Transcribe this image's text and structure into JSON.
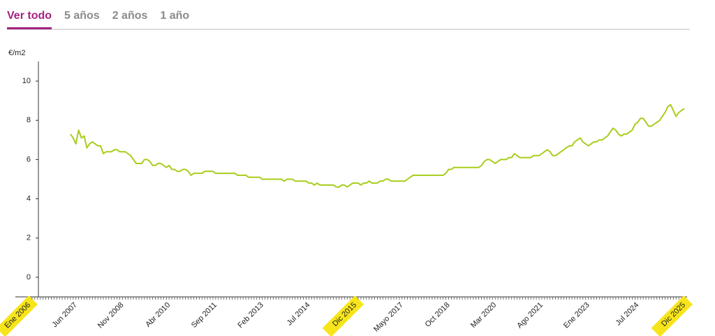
{
  "tabs": [
    "Ver todo",
    "5 años",
    "2 años",
    "1 año"
  ],
  "active_tab": 0,
  "chart_data": {
    "type": "line",
    "y_label": "€/m2",
    "color": "#a8cd1b",
    "ylim": [
      -1,
      11
    ],
    "yticks": [
      0,
      2,
      4,
      6,
      8,
      10
    ],
    "highlighted_categories": [
      0,
      119,
      239
    ],
    "categories": [
      "Ene 2006",
      null,
      null,
      null,
      null,
      null,
      null,
      null,
      null,
      null,
      null,
      null,
      null,
      null,
      null,
      null,
      null,
      "Jun 2007",
      null,
      null,
      null,
      null,
      null,
      null,
      null,
      null,
      null,
      null,
      null,
      null,
      null,
      null,
      null,
      null,
      "Nov 2008",
      null,
      null,
      null,
      null,
      null,
      null,
      null,
      null,
      null,
      null,
      null,
      null,
      null,
      null,
      null,
      null,
      "Abr 2010",
      null,
      null,
      null,
      null,
      null,
      null,
      null,
      null,
      null,
      null,
      null,
      null,
      null,
      null,
      null,
      null,
      "Sep 2011",
      null,
      null,
      null,
      null,
      null,
      null,
      null,
      null,
      null,
      null,
      null,
      null,
      null,
      null,
      null,
      null,
      "Feb 2013",
      null,
      null,
      null,
      null,
      null,
      null,
      null,
      null,
      null,
      null,
      null,
      null,
      null,
      null,
      null,
      null,
      "Jul 2014",
      null,
      null,
      null,
      null,
      null,
      null,
      null,
      null,
      null,
      null,
      null,
      null,
      null,
      null,
      null,
      null,
      "Dic 2015",
      null,
      null,
      null,
      null,
      null,
      null,
      null,
      null,
      null,
      null,
      null,
      null,
      null,
      null,
      null,
      null,
      "Mayo 2017",
      null,
      null,
      null,
      null,
      null,
      null,
      null,
      null,
      null,
      null,
      null,
      null,
      null,
      null,
      null,
      null,
      "Oct 2018",
      null,
      null,
      null,
      null,
      null,
      null,
      null,
      null,
      null,
      null,
      null,
      null,
      null,
      null,
      null,
      null,
      "Mar 2020",
      null,
      null,
      null,
      null,
      null,
      null,
      null,
      null,
      null,
      null,
      null,
      null,
      null,
      null,
      null,
      null,
      "Ago 2021",
      null,
      null,
      null,
      null,
      null,
      null,
      null,
      null,
      null,
      null,
      null,
      null,
      null,
      null,
      null,
      null,
      "Ene 2023",
      null,
      null,
      null,
      null,
      null,
      null,
      null,
      null,
      null,
      null,
      null,
      null,
      null,
      null,
      null,
      null,
      null,
      "Jul 2024",
      null,
      null,
      null,
      null,
      null,
      null,
      null,
      null,
      null,
      null,
      null,
      null,
      null,
      null,
      null,
      null,
      "Dic 2025"
    ],
    "values": [
      null,
      null,
      null,
      null,
      null,
      null,
      null,
      null,
      null,
      null,
      null,
      null,
      null,
      null,
      null,
      7.3,
      7.1,
      6.8,
      7.5,
      7.1,
      7.2,
      6.6,
      6.8,
      6.9,
      6.8,
      6.7,
      6.7,
      6.3,
      6.4,
      6.4,
      6.4,
      6.5,
      6.5,
      6.4,
      6.4,
      6.4,
      6.3,
      6.2,
      6.0,
      5.8,
      5.8,
      5.8,
      6.0,
      6.0,
      5.9,
      5.7,
      5.7,
      5.8,
      5.8,
      5.7,
      5.6,
      5.7,
      5.5,
      5.5,
      5.4,
      5.4,
      5.5,
      5.5,
      5.4,
      5.2,
      5.3,
      5.3,
      5.3,
      5.3,
      5.4,
      5.4,
      5.4,
      5.4,
      5.3,
      5.3,
      5.3,
      5.3,
      5.3,
      5.3,
      5.3,
      5.3,
      5.2,
      5.2,
      5.2,
      5.2,
      5.1,
      5.1,
      5.1,
      5.1,
      5.1,
      5.0,
      5.0,
      5.0,
      5.0,
      5.0,
      5.0,
      5.0,
      5.0,
      4.9,
      5.0,
      5.0,
      5.0,
      4.9,
      4.9,
      4.9,
      4.9,
      4.9,
      4.8,
      4.8,
      4.7,
      4.8,
      4.7,
      4.7,
      4.7,
      4.7,
      4.7,
      4.7,
      4.6,
      4.6,
      4.7,
      4.7,
      4.6,
      4.7,
      4.8,
      4.8,
      4.8,
      4.7,
      4.8,
      4.8,
      4.9,
      4.8,
      4.8,
      4.8,
      4.9,
      4.9,
      5.0,
      5.0,
      4.9,
      4.9,
      4.9,
      4.9,
      4.9,
      4.9,
      5.0,
      5.1,
      5.2,
      5.2,
      5.2,
      5.2,
      5.2,
      5.2,
      5.2,
      5.2,
      5.2,
      5.2,
      5.2,
      5.2,
      5.3,
      5.5,
      5.5,
      5.6,
      5.6,
      5.6,
      5.6,
      5.6,
      5.6,
      5.6,
      5.6,
      5.6,
      5.6,
      5.7,
      5.9,
      6.0,
      6.0,
      5.9,
      5.8,
      5.9,
      6.0,
      6.0,
      6.0,
      6.1,
      6.1,
      6.3,
      6.2,
      6.1,
      6.1,
      6.1,
      6.1,
      6.1,
      6.2,
      6.2,
      6.2,
      6.3,
      6.4,
      6.5,
      6.4,
      6.2,
      6.2,
      6.3,
      6.4,
      6.5,
      6.6,
      6.7,
      6.7,
      6.9,
      7.0,
      7.1,
      6.9,
      6.8,
      6.7,
      6.8,
      6.9,
      6.9,
      7.0,
      7.0,
      7.1,
      7.2,
      7.4,
      7.6,
      7.5,
      7.3,
      7.2,
      7.3,
      7.3,
      7.4,
      7.5,
      7.8,
      7.9,
      8.1,
      8.1,
      7.9,
      7.7,
      7.7,
      7.8,
      7.9,
      8.0,
      8.2,
      8.4,
      8.7,
      8.8,
      8.5,
      8.2,
      8.4,
      8.5,
      8.6
    ]
  }
}
